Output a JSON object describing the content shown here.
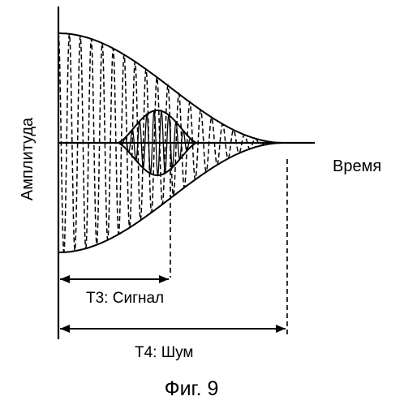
{
  "figure": {
    "y_axis_label": "Амплитуда",
    "x_axis_label": "Время",
    "t3_label": "Т3: Сигнал",
    "t4_label": "Т4: Шум",
    "caption": "Фиг. 9"
  },
  "colors": {
    "ink": "#000000",
    "background": "#ffffff"
  }
}
